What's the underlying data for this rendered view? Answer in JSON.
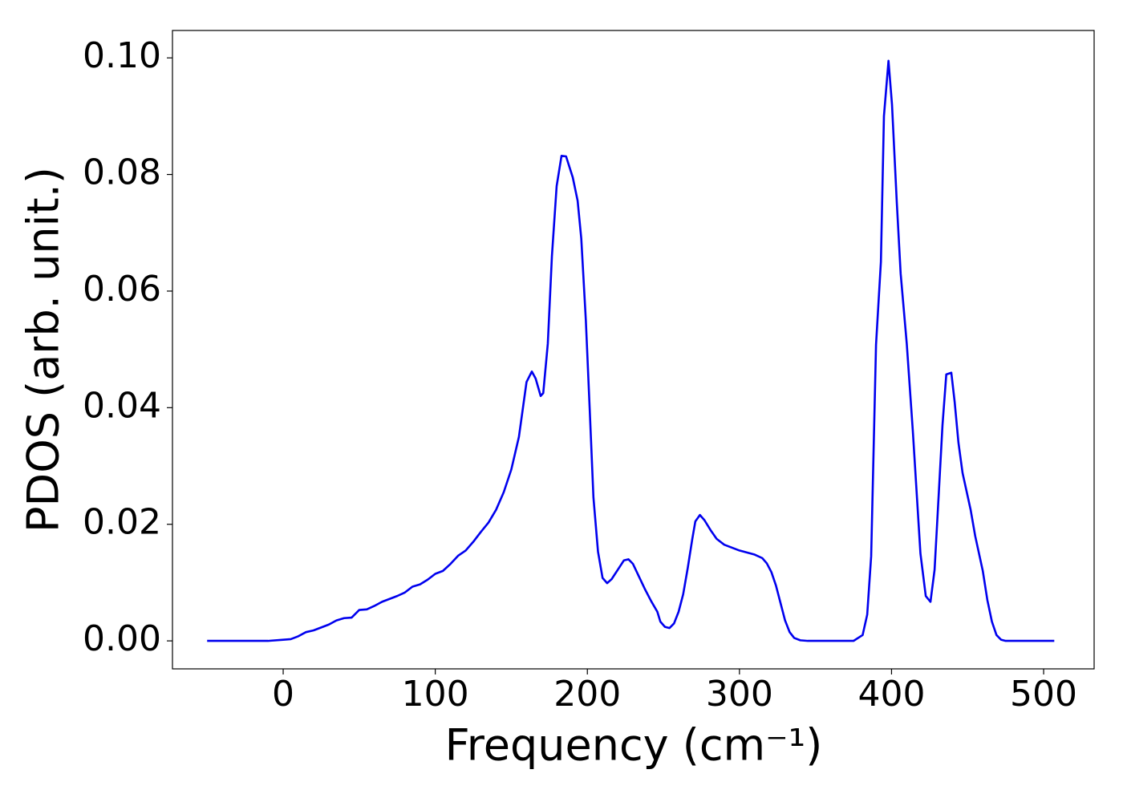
{
  "chart_data": {
    "type": "line",
    "x_label": "Frequency (cm⁻¹)",
    "y_label": "PDOS (arb. unit.)",
    "xlim": [
      -72.8,
      533.2
    ],
    "ylim": [
      -0.0048,
      0.1047
    ],
    "xticks": [
      0,
      100,
      200,
      300,
      400,
      500
    ],
    "yticks": [
      {
        "value": 0,
        "label": "0.00"
      },
      {
        "value": 0.02,
        "label": "0.02"
      },
      {
        "value": 0.04,
        "label": "0.04"
      },
      {
        "value": 0.06,
        "label": "0.06"
      },
      {
        "value": 0.08,
        "label": "0.08"
      },
      {
        "value": 0.1,
        "label": "0.10"
      }
    ],
    "grid": false,
    "series": [
      {
        "color": "#0000ee",
        "x": [
          -50,
          -40,
          -30,
          -20,
          -10,
          0,
          5,
          10,
          15,
          20,
          25,
          30,
          35,
          40,
          45,
          50,
          55,
          60,
          65,
          70,
          75,
          80,
          85,
          90,
          95,
          100,
          105,
          110,
          115,
          120,
          125,
          130,
          135,
          140,
          145,
          150,
          155,
          160,
          163.5,
          166,
          169.3,
          171,
          174,
          176.7,
          179.8,
          183,
          186,
          190.4,
          193.6,
          196,
          199,
          201.5,
          204,
          207,
          210,
          213,
          216,
          220,
          224,
          227,
          230,
          234,
          238,
          242,
          246,
          248,
          251,
          254,
          257,
          260,
          263,
          266,
          269,
          271,
          274,
          277,
          281,
          285,
          290,
          300,
          310,
          315,
          318,
          321,
          324,
          327,
          330,
          333,
          336,
          340,
          345,
          360,
          375,
          381,
          384,
          386.6,
          389.8,
          393,
          395,
          398,
          400.3,
          403.5,
          406,
          410,
          414,
          419,
          422.5,
          425.6,
          428.3,
          431,
          433.5,
          436,
          439.3,
          441.5,
          444,
          446.7,
          452,
          455,
          460,
          463,
          466,
          469,
          472,
          475,
          490,
          507
        ],
        "values": [
          0,
          0,
          0,
          0,
          0,
          0.0002,
          0.0003,
          0.0008,
          0.0015,
          0.0018,
          0.0023,
          0.0028,
          0.0035,
          0.0039,
          0.004,
          0.0053,
          0.0054,
          0.006,
          0.0067,
          0.0072,
          0.0077,
          0.0083,
          0.0093,
          0.0097,
          0.0105,
          0.0115,
          0.012,
          0.0132,
          0.0146,
          0.0155,
          0.017,
          0.0187,
          0.0203,
          0.0225,
          0.0255,
          0.0294,
          0.035,
          0.0444,
          0.0462,
          0.045,
          0.042,
          0.0425,
          0.051,
          0.066,
          0.078,
          0.0832,
          0.0831,
          0.0795,
          0.0755,
          0.069,
          0.055,
          0.04,
          0.0246,
          0.0153,
          0.0108,
          0.0099,
          0.0106,
          0.0122,
          0.0138,
          0.014,
          0.0132,
          0.011,
          0.0088,
          0.0068,
          0.005,
          0.0033,
          0.0024,
          0.0022,
          0.003,
          0.005,
          0.008,
          0.0125,
          0.0175,
          0.0205,
          0.0216,
          0.0207,
          0.019,
          0.0175,
          0.0165,
          0.0155,
          0.0148,
          0.0142,
          0.0133,
          0.0118,
          0.0095,
          0.0065,
          0.0035,
          0.0015,
          0.0005,
          0.0001,
          0,
          0,
          0,
          0.001,
          0.0045,
          0.0145,
          0.0508,
          0.065,
          0.09,
          0.0995,
          0.092,
          0.075,
          0.063,
          0.051,
          0.036,
          0.015,
          0.0077,
          0.0067,
          0.0122,
          0.025,
          0.037,
          0.0457,
          0.046,
          0.041,
          0.034,
          0.0288,
          0.0225,
          0.018,
          0.012,
          0.007,
          0.0033,
          0.001,
          0.0002,
          0,
          0,
          0
        ]
      }
    ]
  }
}
